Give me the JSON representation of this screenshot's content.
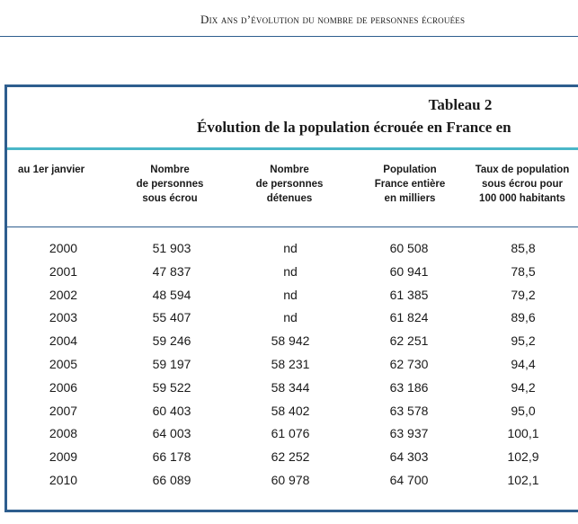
{
  "running_header": "Dix ans d’évolution du nombre de personnes écrouées",
  "table": {
    "title_line1": "Tableau 2",
    "title_line2": "Évolution de la population écrouée en France en",
    "headers": [
      "au 1er janvier",
      "Nombre\nde personnes\nsous écrou",
      "Nombre\nde personnes\ndétenues",
      "Population\nFrance entière\nen milliers",
      "Taux de population\nsous écrou pour\n100 000 habitants"
    ],
    "rows": [
      [
        "2000",
        "51 903",
        "nd",
        "60 508",
        "85,8"
      ],
      [
        "2001",
        "47 837",
        "nd",
        "60 941",
        "78,5"
      ],
      [
        "2002",
        "48 594",
        "nd",
        "61 385",
        "79,2"
      ],
      [
        "2003",
        "55 407",
        "nd",
        "61 824",
        "89,6"
      ],
      [
        "2004",
        "59 246",
        "58 942",
        "62 251",
        "95,2"
      ],
      [
        "2005",
        "59 197",
        "58 231",
        "62 730",
        "94,4"
      ],
      [
        "2006",
        "59 522",
        "58 344",
        "63 186",
        "94,2"
      ],
      [
        "2007",
        "60 403",
        "58 402",
        "63 578",
        "95,0"
      ],
      [
        "2008",
        "64 003",
        "61 076",
        "63 937",
        "100,1"
      ],
      [
        "2009",
        "66 178",
        "62 252",
        "64 303",
        "102,9"
      ],
      [
        "2010",
        "66 089",
        "60 978",
        "64 700",
        "102,1"
      ]
    ],
    "colors": {
      "border": "#2e5e8e",
      "title_rule": "#4ab7c8"
    }
  }
}
